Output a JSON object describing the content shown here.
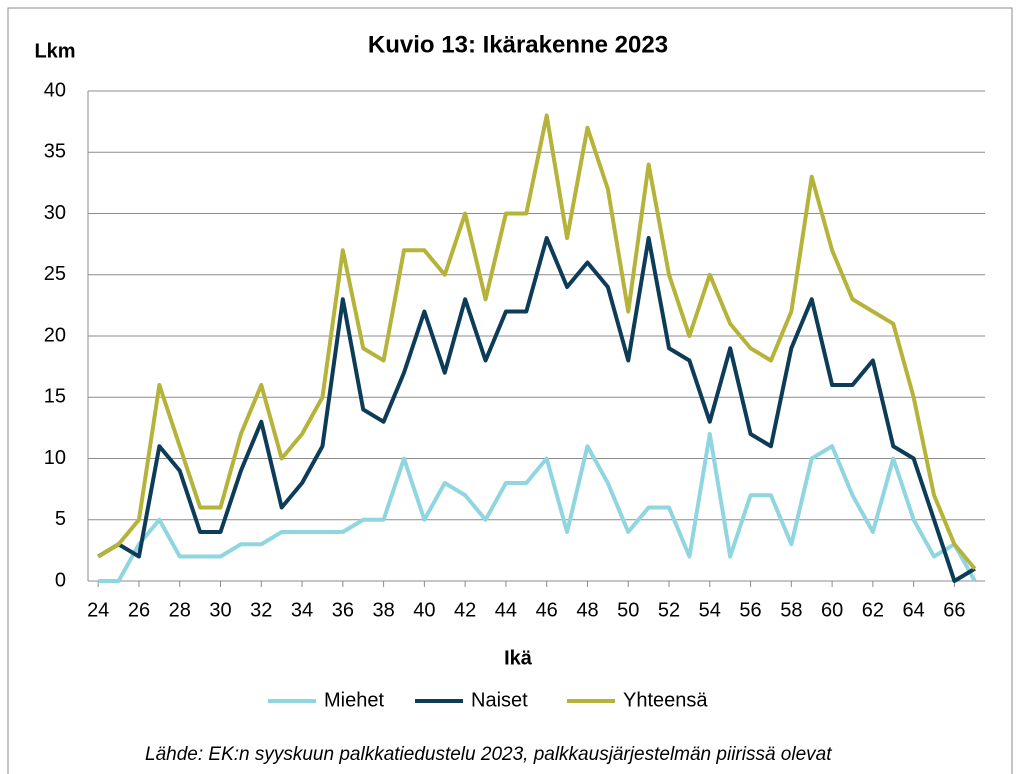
{
  "chart_data": {
    "type": "line",
    "title": "Kuvio 13: Ikärakenne 2023",
    "y_label": "Lkm",
    "x_label": "Ikä",
    "footnote": "Lähde: EK:n syyskuun palkkatiedustelu 2023, palkkausjärjestelmän piirissä olevat",
    "x": [
      24,
      25,
      26,
      27,
      28,
      29,
      30,
      31,
      32,
      33,
      34,
      35,
      36,
      37,
      38,
      39,
      40,
      41,
      42,
      43,
      44,
      45,
      46,
      47,
      48,
      49,
      50,
      51,
      52,
      53,
      54,
      55,
      56,
      57,
      58,
      59,
      60,
      61,
      62,
      63,
      64,
      65,
      66,
      67
    ],
    "series": [
      {
        "name": "Miehet",
        "color": "#8fd6e1",
        "values": [
          0,
          0,
          3,
          5,
          2,
          2,
          2,
          3,
          3,
          4,
          4,
          4,
          4,
          5,
          5,
          10,
          5,
          8,
          7,
          5,
          8,
          8,
          10,
          4,
          11,
          8,
          4,
          6,
          6,
          2,
          12,
          2,
          7,
          7,
          3,
          10,
          11,
          7,
          4,
          10,
          5,
          2,
          3,
          0
        ]
      },
      {
        "name": "Naiset",
        "color": "#0c3c58",
        "values": [
          2,
          3,
          2,
          11,
          9,
          4,
          4,
          9,
          13,
          6,
          8,
          11,
          23,
          14,
          13,
          17,
          22,
          17,
          23,
          18,
          22,
          22,
          28,
          24,
          26,
          24,
          18,
          28,
          19,
          18,
          13,
          19,
          12,
          11,
          19,
          23,
          16,
          16,
          18,
          11,
          10,
          5,
          0,
          1
        ]
      },
      {
        "name": "Yhteensä",
        "color": "#b5b33a",
        "values": [
          2,
          3,
          5,
          16,
          11,
          6,
          6,
          12,
          16,
          10,
          12,
          15,
          27,
          19,
          18,
          27,
          27,
          25,
          30,
          23,
          30,
          30,
          38,
          28,
          37,
          32,
          22,
          34,
          25,
          20,
          25,
          21,
          19,
          18,
          22,
          33,
          27,
          23,
          22,
          21,
          15,
          7,
          3,
          1
        ]
      }
    ],
    "xlim": [
      23.5,
      67.5
    ],
    "xticks": [
      24,
      26,
      28,
      30,
      32,
      34,
      36,
      38,
      40,
      42,
      44,
      46,
      48,
      50,
      52,
      54,
      56,
      58,
      60,
      62,
      64,
      66
    ],
    "ylim": [
      0,
      40
    ],
    "yticks": [
      0,
      5,
      10,
      15,
      20,
      25,
      30,
      35,
      40
    ],
    "grid": true,
    "legend": "bottom"
  }
}
